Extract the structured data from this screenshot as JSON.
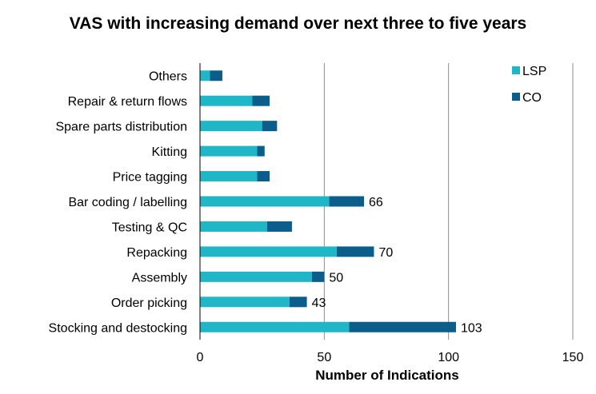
{
  "chart_data": {
    "type": "bar",
    "orientation": "horizontal",
    "stacked": true,
    "title": "VAS with increasing demand over next three to five years",
    "xlabel": "Number of Indications",
    "ylabel": "",
    "xlim": [
      0,
      150
    ],
    "xticks": [
      "0",
      "50",
      "100",
      "150"
    ],
    "grid": true,
    "legend_position": "top-right",
    "categories": [
      "Others",
      "Repair & return flows",
      "Spare parts distribution",
      "Kitting",
      "Price tagging",
      "Bar coding / labelling",
      "Testing & QC",
      "Repacking",
      "Assembly",
      "Order picking",
      "Stocking and destocking"
    ],
    "series": [
      {
        "name": "LSP",
        "color": "#1fb7c8",
        "values": [
          4,
          21,
          25,
          23,
          23,
          52,
          27,
          55,
          45,
          36,
          60
        ]
      },
      {
        "name": "CO",
        "color": "#0b5d8b",
        "values": [
          5,
          7,
          6,
          3,
          5,
          14,
          10,
          15,
          5,
          7,
          43
        ]
      }
    ],
    "data_labels": [
      "",
      "",
      "",
      "",
      "",
      "66",
      "",
      "70",
      "50",
      "43",
      "103"
    ]
  }
}
